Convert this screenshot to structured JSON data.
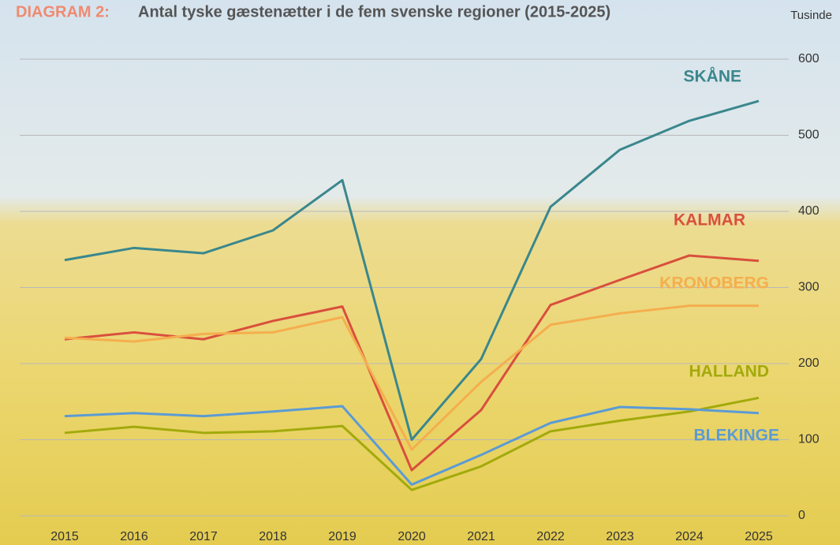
{
  "chart_data": {
    "type": "line",
    "title_prefix": "DIAGRAM 2:",
    "title": "Antal tyske gæstenætter i de fem svenske regioner (2015-2025)",
    "y_unit": "Tusinde",
    "categories": [
      "2015",
      "2016",
      "2017",
      "2018",
      "2019",
      "2020",
      "2021",
      "2022",
      "2023",
      "2024",
      "2025"
    ],
    "series": [
      {
        "name": "SKÅNE",
        "color": "#3a878d",
        "values": [
          336,
          352,
          345,
          375,
          441,
          100,
          206,
          406,
          481,
          519,
          545
        ]
      },
      {
        "name": "KALMAR",
        "color": "#d94f3d",
        "values": [
          232,
          241,
          232,
          256,
          275,
          60,
          139,
          277,
          310,
          342,
          335
        ]
      },
      {
        "name": "KRONOBERG",
        "color": "#f5ae4e",
        "values": [
          234,
          229,
          239,
          241,
          261,
          87,
          176,
          251,
          266,
          276,
          276
        ]
      },
      {
        "name": "HALLAND",
        "color": "#a3aa0c",
        "values": [
          109,
          117,
          109,
          111,
          118,
          34,
          65,
          111,
          125,
          137,
          155
        ]
      },
      {
        "name": "BLEKINGE",
        "color": "#5b9bd5",
        "values": [
          131,
          135,
          131,
          137,
          144,
          41,
          80,
          122,
          143,
          140,
          135
        ]
      }
    ],
    "ylim": [
      0,
      600
    ],
    "yticks": [
      0,
      100,
      200,
      300,
      400,
      500,
      600
    ],
    "grid": true
  }
}
